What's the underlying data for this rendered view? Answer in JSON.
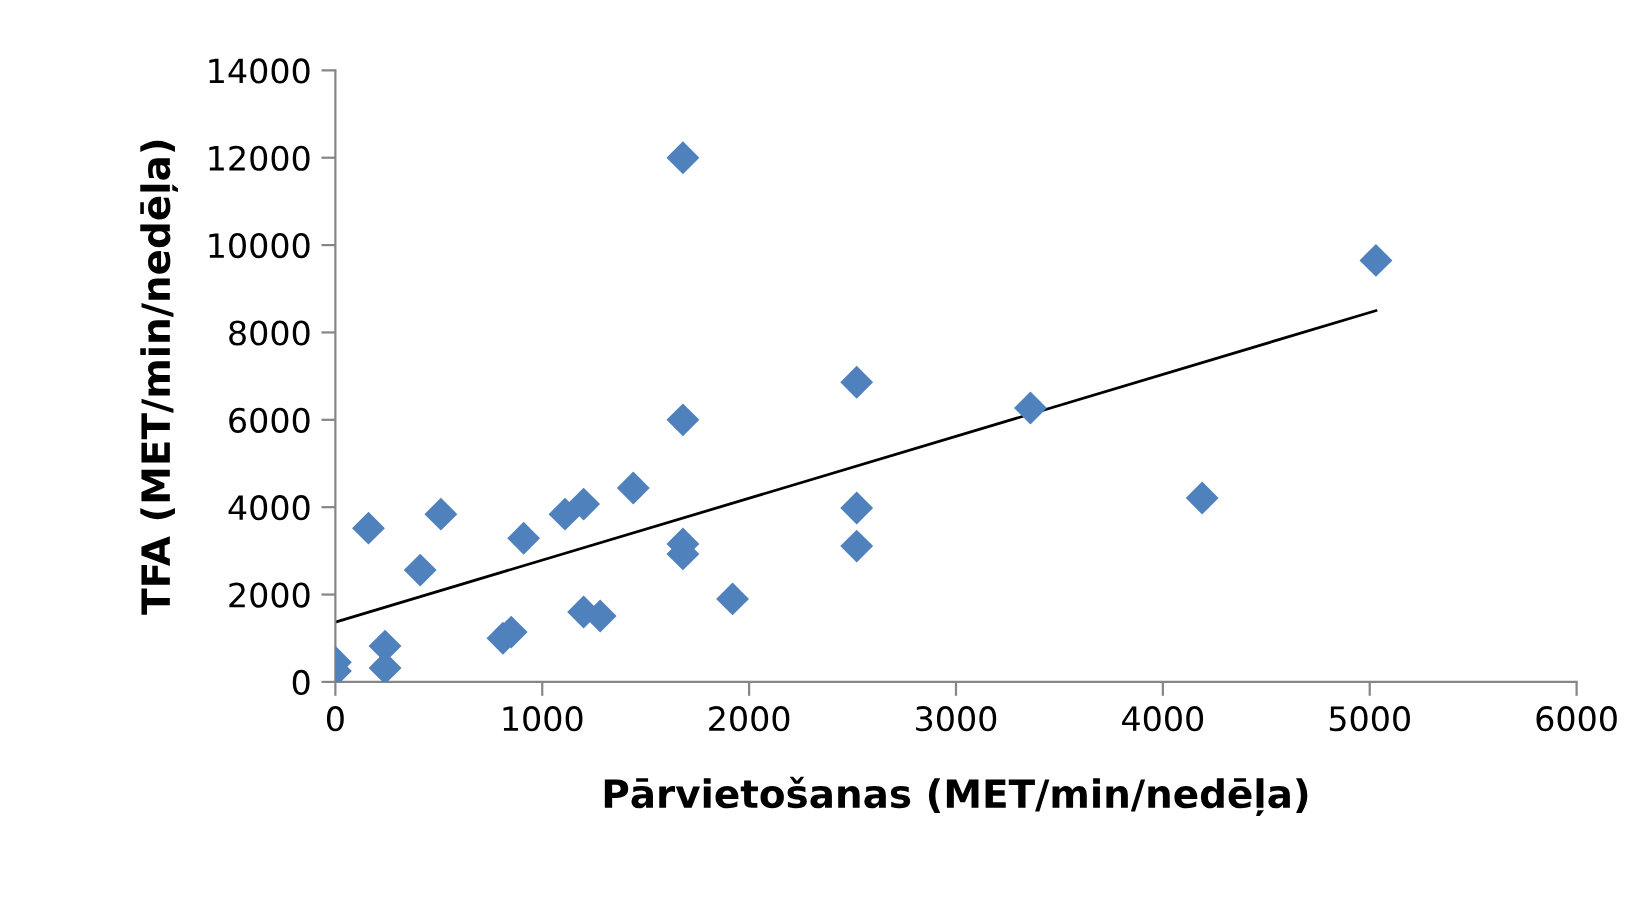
{
  "chart_data": {
    "type": "scatter",
    "xlabel": "Pārvietošanas (MET/min/nedēļa)",
    "ylabel": "TFA (MET/min/nedēļa)",
    "xlim": [
      0,
      6000
    ],
    "xticks": [
      0,
      1000,
      2000,
      3000,
      4000,
      5000,
      6000
    ],
    "ylim": [
      0,
      14000
    ],
    "yticks": [
      0,
      2000,
      4000,
      6000,
      8000,
      10000,
      12000,
      14000
    ],
    "grid": false,
    "legend": false,
    "series": [
      {
        "marker": "diamond",
        "color": "#4f81bd",
        "x": [
          0,
          0,
          160,
          240,
          240,
          410,
          510,
          810,
          850,
          910,
          1110,
          1200,
          1200,
          1280,
          1440,
          1680,
          1680,
          1680,
          1680,
          1920,
          2520,
          2520,
          2520,
          3360,
          4190,
          5030
        ],
        "values": [
          450,
          250,
          3520,
          820,
          320,
          2560,
          3840,
          1000,
          1140,
          3290,
          3840,
          4070,
          1600,
          1510,
          4440,
          12000,
          6000,
          3160,
          2930,
          1900,
          6860,
          3980,
          3110,
          6270,
          4210,
          9650
        ]
      },
      {
        "type": "line",
        "marker": "none",
        "color": "#000000",
        "x": [
          0,
          5030
        ],
        "values": [
          1370,
          8500
        ]
      }
    ]
  }
}
